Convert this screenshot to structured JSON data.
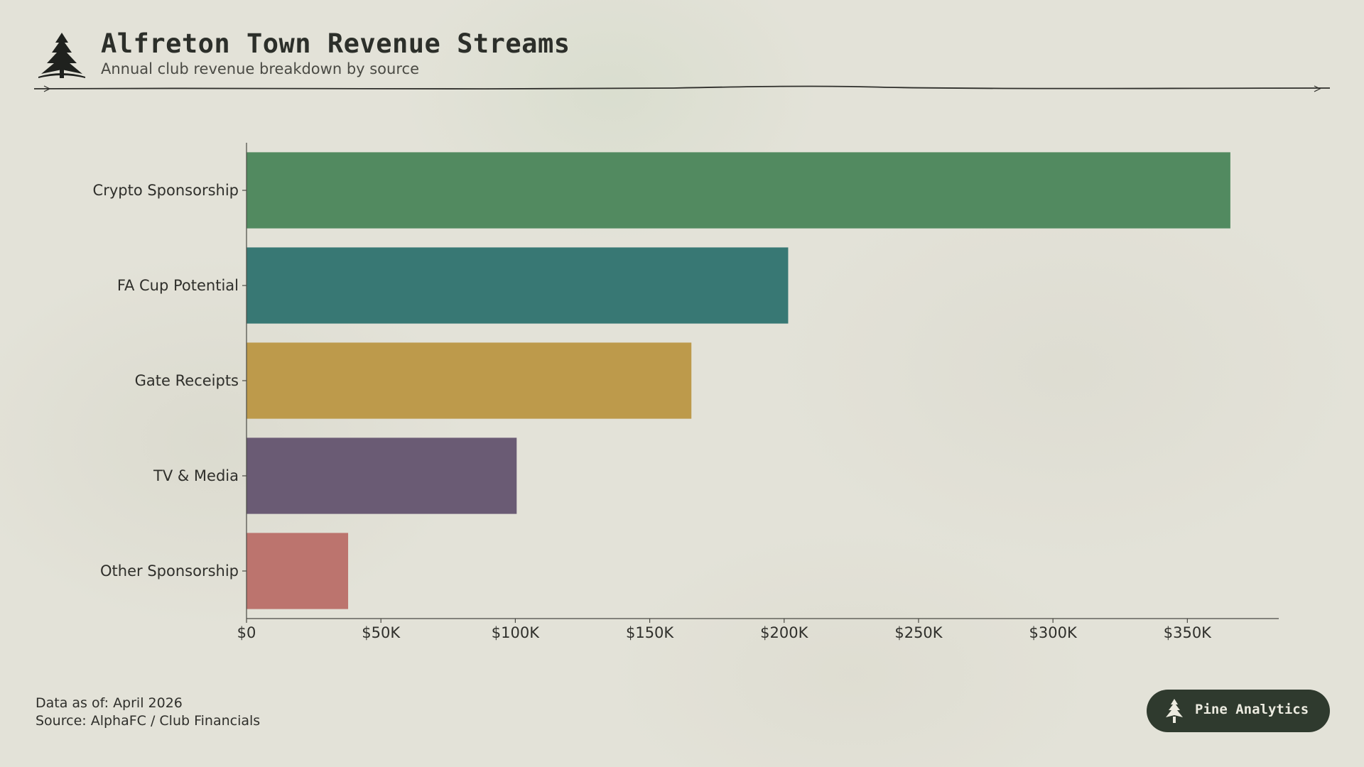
{
  "header": {
    "title": "Alfreton Town Revenue Streams",
    "subtitle": "Annual club revenue breakdown by source",
    "logo_icon": "pine-tree-icon"
  },
  "chart_data": {
    "type": "bar",
    "orientation": "horizontal",
    "categories": [
      "Crypto Sponsorship",
      "FA Cup Potential",
      "Gate Receipts",
      "TV & Media",
      "Other Sponsorship"
    ],
    "values": [
      366000,
      201500,
      165500,
      100500,
      37800
    ],
    "colors": [
      "#528a60",
      "#387874",
      "#bd9a4b",
      "#6a5b74",
      "#bc746e"
    ],
    "xlim": [
      0,
      384000
    ],
    "xticks": [
      0,
      50000,
      100000,
      150000,
      200000,
      250000,
      300000,
      350000
    ],
    "xtick_labels": [
      "$0",
      "$50K",
      "$100K",
      "$150K",
      "$200K",
      "$250K",
      "$300K",
      "$350K"
    ],
    "xlabel": "",
    "ylabel": "",
    "grid": false,
    "legend": "none"
  },
  "footer": {
    "date_line": "Data as of: April 2026",
    "source_line": "Source: AlphaFC / Club Financials"
  },
  "badge": {
    "label": "Pine Analytics",
    "icon": "pine-tree-icon",
    "bg_color": "#2f3a2e"
  }
}
